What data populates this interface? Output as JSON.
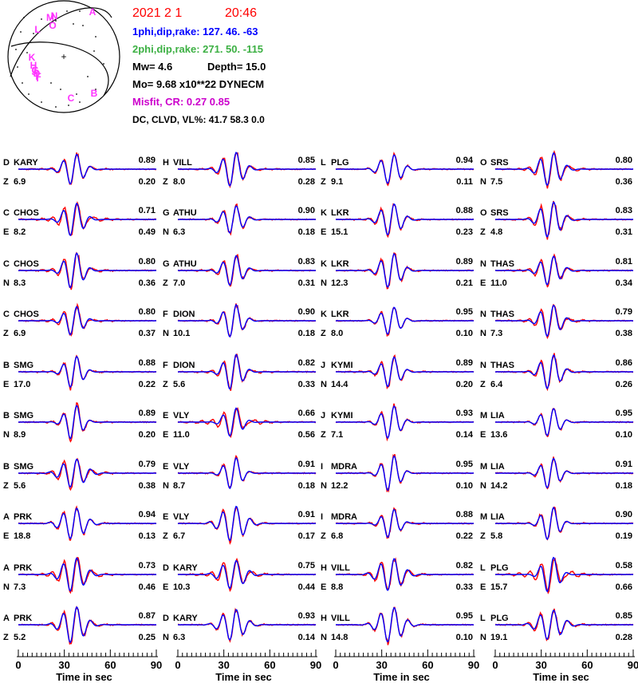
{
  "chart_data": {
    "type": "line",
    "header": {
      "date": "2021  2  1",
      "time": "20:46",
      "np1": "1phi,dip,rake: 127. 46.  -63",
      "np2": "2phi,dip,rake: 271. 50. -115",
      "mw": "Mw=  4.6",
      "depth": "Depth=    15.0",
      "mo": "Mo=  9.68 x10**22 DYNECM",
      "misfit": "Misfit,  CR:      0.27      0.85",
      "vl": "DC, CLVD, VL%:   41.7    58.3     0.0"
    },
    "beachball": {
      "np1": [
        127,
        46,
        -63
      ],
      "np2": [
        271,
        50,
        -115
      ],
      "labels": [
        "A",
        "M",
        "N",
        "O",
        "L",
        "K",
        "H",
        "J",
        "F",
        "I",
        "G",
        "D",
        "C",
        "B"
      ]
    },
    "xaxis": {
      "ticks": [
        "0",
        "30",
        "60",
        "90"
      ],
      "label": "Time  in sec",
      "range": [
        0,
        90
      ]
    },
    "series_colors": {
      "observed": "#ff0000",
      "synthetic": "#0000ff"
    },
    "columns": [
      [
        {
          "code": "D",
          "station": "KARY",
          "comp": "Z",
          "amp": "6.9",
          "cc": "0.89",
          "misfit": "0.20"
        },
        {
          "code": "C",
          "station": "CHOS",
          "comp": "E",
          "amp": "8.2",
          "cc": "0.71",
          "misfit": "0.49"
        },
        {
          "code": "C",
          "station": "CHOS",
          "comp": "N",
          "amp": "8.3",
          "cc": "0.80",
          "misfit": "0.36"
        },
        {
          "code": "C",
          "station": "CHOS",
          "comp": "Z",
          "amp": "6.9",
          "cc": "0.80",
          "misfit": "0.37"
        },
        {
          "code": "B",
          "station": "SMG",
          "comp": "E",
          "amp": "17.0",
          "cc": "0.88",
          "misfit": "0.22"
        },
        {
          "code": "B",
          "station": "SMG",
          "comp": "N",
          "amp": "8.9",
          "cc": "0.89",
          "misfit": "0.20"
        },
        {
          "code": "B",
          "station": "SMG",
          "comp": "Z",
          "amp": "5.6",
          "cc": "0.79",
          "misfit": "0.38"
        },
        {
          "code": "A",
          "station": "PRK",
          "comp": "E",
          "amp": "18.8",
          "cc": "0.94",
          "misfit": "0.13"
        },
        {
          "code": "A",
          "station": "PRK",
          "comp": "N",
          "amp": "7.3",
          "cc": "0.73",
          "misfit": "0.46"
        },
        {
          "code": "A",
          "station": "PRK",
          "comp": "Z",
          "amp": "5.2",
          "cc": "0.87",
          "misfit": "0.25"
        }
      ],
      [
        {
          "code": "H",
          "station": "VILL",
          "comp": "Z",
          "amp": "8.0",
          "cc": "0.85",
          "misfit": "0.28"
        },
        {
          "code": "G",
          "station": "ATHU",
          "comp": "N",
          "amp": "6.3",
          "cc": "0.90",
          "misfit": "0.18"
        },
        {
          "code": "G",
          "station": "ATHU",
          "comp": "Z",
          "amp": "7.0",
          "cc": "0.83",
          "misfit": "0.31"
        },
        {
          "code": "F",
          "station": "DION",
          "comp": "N",
          "amp": "10.1",
          "cc": "0.90",
          "misfit": "0.18"
        },
        {
          "code": "F",
          "station": "DION",
          "comp": "Z",
          "amp": "5.6",
          "cc": "0.82",
          "misfit": "0.33"
        },
        {
          "code": "E",
          "station": "VLY",
          "comp": "E",
          "amp": "11.0",
          "cc": "0.66",
          "misfit": "0.56"
        },
        {
          "code": "E",
          "station": "VLY",
          "comp": "N",
          "amp": "8.7",
          "cc": "0.91",
          "misfit": "0.18"
        },
        {
          "code": "E",
          "station": "VLY",
          "comp": "Z",
          "amp": "6.7",
          "cc": "0.91",
          "misfit": "0.17"
        },
        {
          "code": "D",
          "station": "KARY",
          "comp": "E",
          "amp": "10.3",
          "cc": "0.75",
          "misfit": "0.44"
        },
        {
          "code": "D",
          "station": "KARY",
          "comp": "N",
          "amp": "6.3",
          "cc": "0.93",
          "misfit": "0.14"
        }
      ],
      [
        {
          "code": "L",
          "station": "PLG",
          "comp": "Z",
          "amp": "9.1",
          "cc": "0.94",
          "misfit": "0.11"
        },
        {
          "code": "K",
          "station": "LKR",
          "comp": "E",
          "amp": "15.1",
          "cc": "0.88",
          "misfit": "0.23"
        },
        {
          "code": "K",
          "station": "LKR",
          "comp": "N",
          "amp": "12.3",
          "cc": "0.89",
          "misfit": "0.21"
        },
        {
          "code": "K",
          "station": "LKR",
          "comp": "Z",
          "amp": "8.0",
          "cc": "0.95",
          "misfit": "0.10"
        },
        {
          "code": "J",
          "station": "KYMI",
          "comp": "N",
          "amp": "14.4",
          "cc": "0.89",
          "misfit": "0.20"
        },
        {
          "code": "J",
          "station": "KYMI",
          "comp": "Z",
          "amp": "7.1",
          "cc": "0.93",
          "misfit": "0.14"
        },
        {
          "code": "I",
          "station": "MDRA",
          "comp": "N",
          "amp": "12.2",
          "cc": "0.95",
          "misfit": "0.10"
        },
        {
          "code": "I",
          "station": "MDRA",
          "comp": "Z",
          "amp": "6.8",
          "cc": "0.88",
          "misfit": "0.22"
        },
        {
          "code": "H",
          "station": "VILL",
          "comp": "E",
          "amp": "8.8",
          "cc": "0.82",
          "misfit": "0.33"
        },
        {
          "code": "H",
          "station": "VILL",
          "comp": "N",
          "amp": "14.8",
          "cc": "0.95",
          "misfit": "0.10"
        }
      ],
      [
        {
          "code": "O",
          "station": "SRS",
          "comp": "N",
          "amp": "7.5",
          "cc": "0.80",
          "misfit": "0.36"
        },
        {
          "code": "O",
          "station": "SRS",
          "comp": "Z",
          "amp": "4.8",
          "cc": "0.83",
          "misfit": "0.31"
        },
        {
          "code": "N",
          "station": "THAS",
          "comp": "E",
          "amp": "11.0",
          "cc": "0.81",
          "misfit": "0.34"
        },
        {
          "code": "N",
          "station": "THAS",
          "comp": "N",
          "amp": "7.3",
          "cc": "0.79",
          "misfit": "0.38"
        },
        {
          "code": "N",
          "station": "THAS",
          "comp": "Z",
          "amp": "6.4",
          "cc": "0.86",
          "misfit": "0.26"
        },
        {
          "code": "M",
          "station": "LIA",
          "comp": "E",
          "amp": "13.6",
          "cc": "0.95",
          "misfit": "0.10"
        },
        {
          "code": "M",
          "station": "LIA",
          "comp": "N",
          "amp": "14.2",
          "cc": "0.91",
          "misfit": "0.18"
        },
        {
          "code": "M",
          "station": "LIA",
          "comp": "Z",
          "amp": "5.8",
          "cc": "0.90",
          "misfit": "0.19"
        },
        {
          "code": "L",
          "station": "PLG",
          "comp": "E",
          "amp": "15.7",
          "cc": "0.58",
          "misfit": "0.66"
        },
        {
          "code": "L",
          "station": "PLG",
          "comp": "N",
          "amp": "19.1",
          "cc": "0.85",
          "misfit": "0.28"
        }
      ]
    ]
  }
}
